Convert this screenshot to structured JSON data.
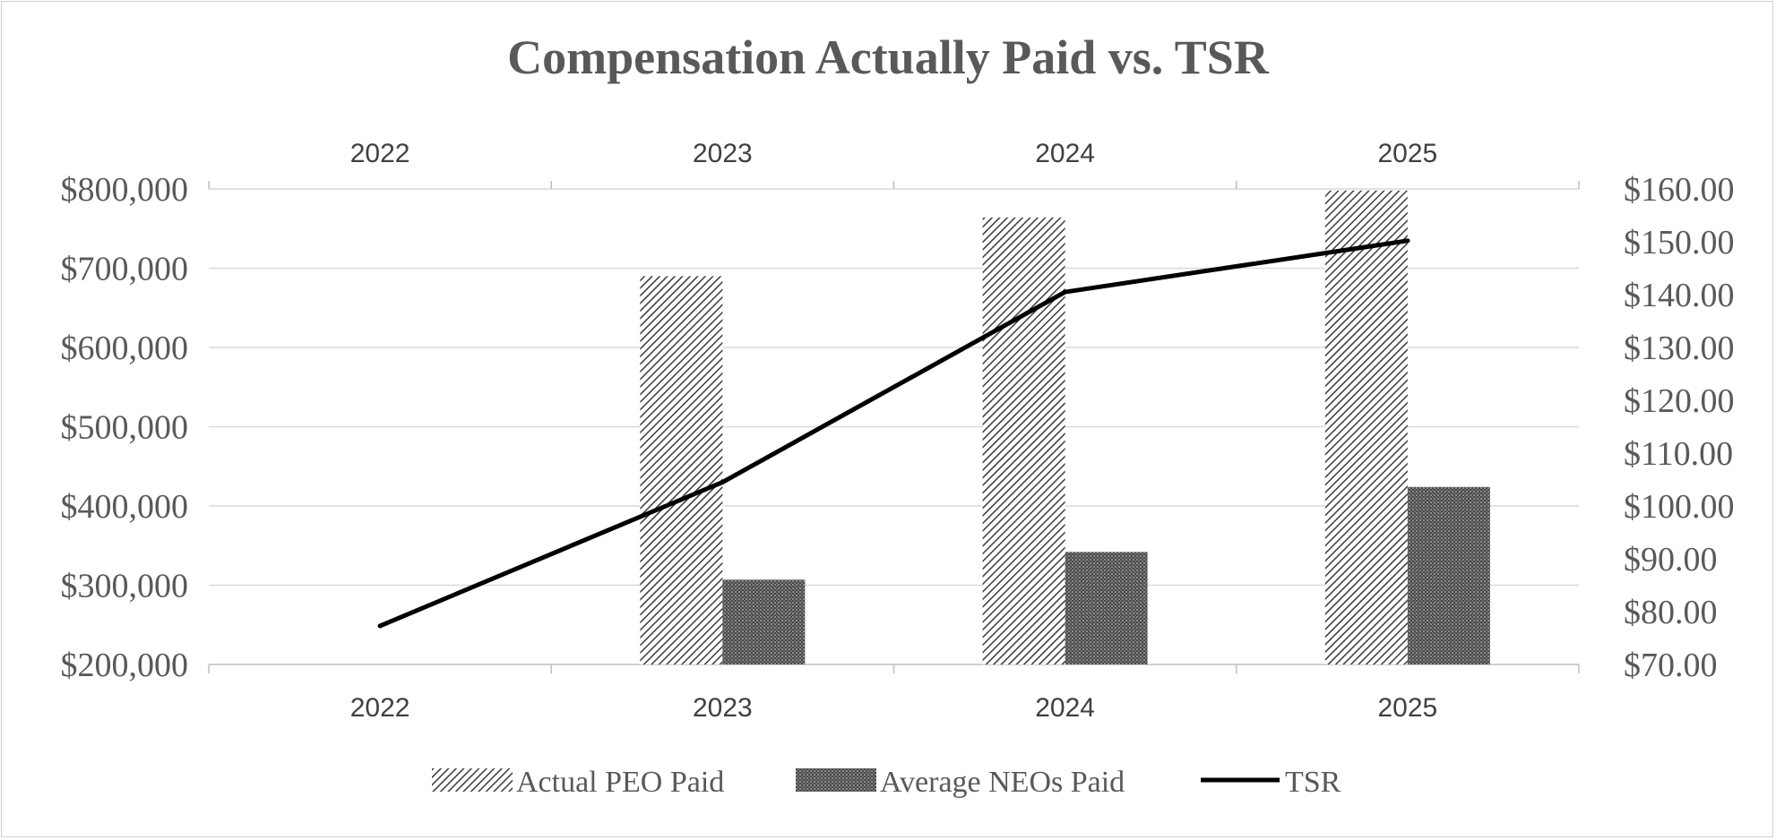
{
  "chart_data": {
    "type": "bar",
    "title": "Compensation Actually Paid vs. TSR",
    "categories": [
      "2022",
      "2023",
      "2024",
      "2025"
    ],
    "series": [
      {
        "name": "Actual PEO Paid",
        "kind": "bar",
        "axis": "left",
        "pattern": "diagonal-hatch",
        "values": [
          null,
          690000,
          764000,
          798000
        ]
      },
      {
        "name": "Average NEOs Paid",
        "kind": "bar",
        "axis": "left",
        "pattern": "dense-crosshatch",
        "values": [
          null,
          307000,
          342000,
          424000
        ]
      },
      {
        "name": "TSR",
        "kind": "line",
        "axis": "right",
        "color": "#000000",
        "values": [
          77.3,
          104.5,
          140.5,
          150.2
        ]
      }
    ],
    "y_left": {
      "ylim": [
        200000,
        800000
      ],
      "ticks": [
        "$200,000",
        "$300,000",
        "$400,000",
        "$500,000",
        "$600,000",
        "$700,000",
        "$800,000"
      ]
    },
    "y_right": {
      "ylim": [
        70,
        160
      ],
      "ticks": [
        "$70.00",
        "$80.00",
        "$90.00",
        "$100.00",
        "$110.00",
        "$120.00",
        "$130.00",
        "$140.00",
        "$150.00",
        "$160.00"
      ]
    },
    "grid": true,
    "legend": "bottom",
    "colors": {
      "text": "#595959",
      "grid": "#d9d9d9",
      "bar_fill": "#595959"
    }
  }
}
